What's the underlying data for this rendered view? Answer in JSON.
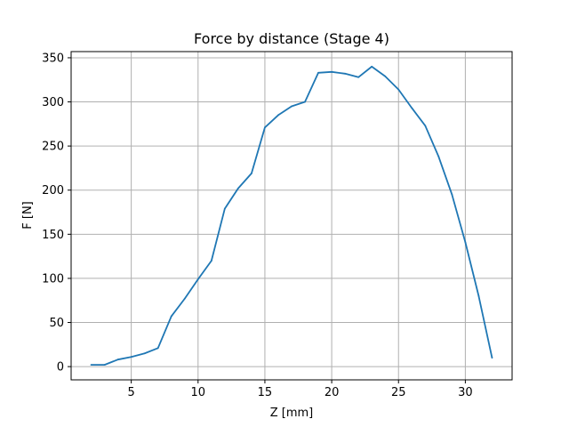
{
  "chart_data": {
    "type": "line",
    "title": "Force by distance (Stage 4)",
    "xlabel": "Z [mm]",
    "ylabel": "F [N]",
    "xlim": [
      0.5,
      33.5
    ],
    "ylim": [
      -15,
      357
    ],
    "xticks": [
      5,
      10,
      15,
      20,
      25,
      30
    ],
    "yticks": [
      0,
      50,
      100,
      150,
      200,
      250,
      300,
      350
    ],
    "grid": true,
    "series": [
      {
        "color": "#1f77b4",
        "x": [
          2,
          3,
          4,
          5,
          6,
          7,
          8,
          9,
          10,
          11,
          12,
          13,
          14,
          15,
          16,
          17,
          18,
          19,
          20,
          21,
          22,
          23,
          24,
          25,
          26,
          27,
          28,
          29,
          30,
          31,
          32
        ],
        "y": [
          2,
          2,
          8,
          11,
          15,
          21,
          57,
          77,
          99,
          120,
          179,
          202,
          219,
          271,
          285,
          295,
          300,
          333,
          334,
          332,
          328,
          340,
          329,
          314,
          293,
          273,
          238,
          195,
          141,
          80,
          10
        ]
      }
    ]
  }
}
